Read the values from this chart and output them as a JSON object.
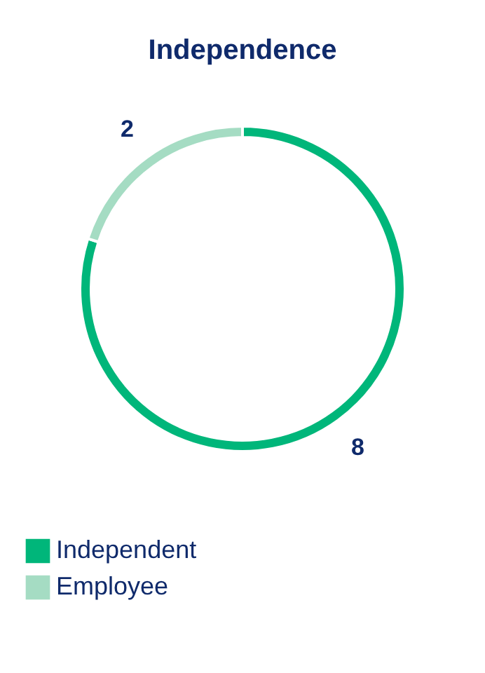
{
  "chart_data": {
    "type": "donut",
    "title": "Independence",
    "categories": [
      "Independent",
      "Employee"
    ],
    "values": [
      8,
      2
    ],
    "colors": [
      "#00b67a",
      "#a5dcc3"
    ],
    "data_labels": true,
    "legend": "bottom"
  }
}
